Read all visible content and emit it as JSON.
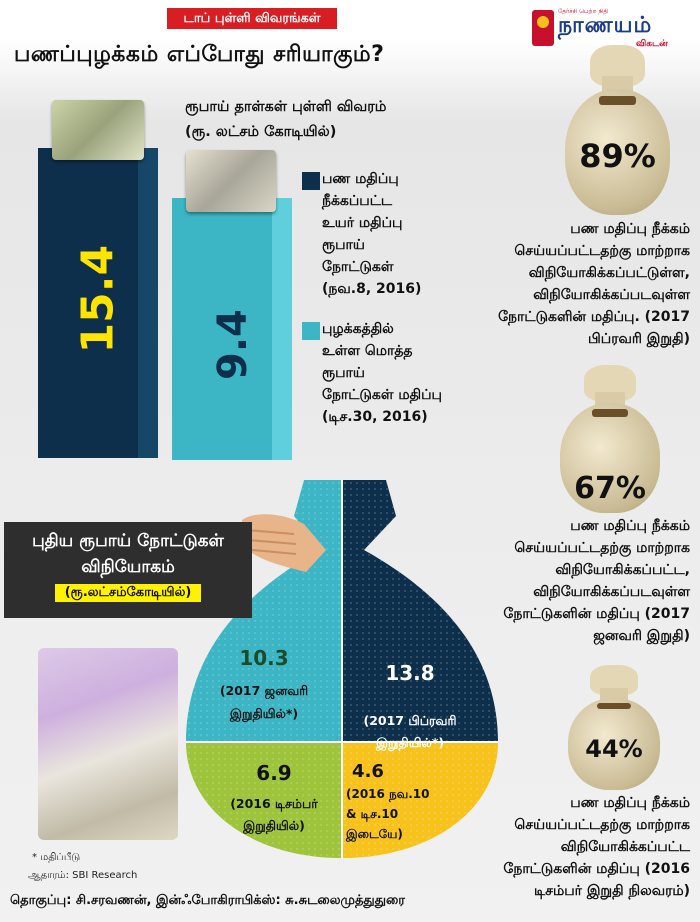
{
  "header": {
    "tag": "டாப் புள்ளி விவரங்கள்",
    "title": "பணப்புழக்கம் எப்போது சரியாகும்?"
  },
  "logo": {
    "small_text": "தேர்ச்சி பெற்ற நிதி",
    "main_text": "நாணயம்",
    "sub_text": "விகடன்"
  },
  "bar_section": {
    "subtitle_line1": "ரூபாய் தாள்கள் புள்ளி விவரம்",
    "subtitle_line2": "(ரூ. லட்சம் கோடியில்)"
  },
  "colors": {
    "dark_navy": "#0d2f4c",
    "teal": "#3cb6c4",
    "green": "#9dc43a",
    "yellow": "#f7c21b",
    "red_tag": "#d81d23",
    "banner_bg": "#2e2e2e"
  },
  "chart_data": [
    {
      "type": "bar",
      "categories": [
        "பண மதிப்பு நீக்கப்பட்ட உயர் மதிப்பு ரூபாய் நோட்டுகள் (நவ.8, 2016)",
        "புழக்கத்தில் உள்ள மொத்த ரூபாய் நோட்டுகள் மதிப்பு (டிச.30, 2016)"
      ],
      "values": [
        15.4,
        9.4
      ],
      "value_labels": [
        "15.4",
        "9.4"
      ],
      "title": "ரூபாய் தாள்கள் புள்ளி விவரம் (ரூ. லட்சம் கோடியில்)",
      "legend": [
        {
          "label": "பண மதிப்பு நீக்கப்பட்ட உயர் மதிப்பு ரூபாய் நோட்டுகள் (நவ.8, 2016)",
          "color": "#0d2f4c"
        },
        {
          "label": "புழக்கத்தில் உள்ள மொத்த ரூபாய் நோட்டுகள் மதிப்பு (டிச.30, 2016)",
          "color": "#3cb6c4"
        }
      ]
    },
    {
      "type": "pie",
      "title": "புதிய ரூபாய் நோட்டுகள் விநியோகம் (ரூ.லட்சம்கோடியில்)",
      "slices": [
        {
          "value": 10.3,
          "label": "10.3",
          "caption": "(2017 ஜனவரி இறுதியில்*)",
          "color": "#3cb6c4"
        },
        {
          "value": 13.8,
          "label": "13.8",
          "caption": "(2017 பிப்ரவரி இறுதியில்*)",
          "color": "#0d2f4c"
        },
        {
          "value": 4.6,
          "label": "4.6",
          "caption": "(2016 நவ.10 & டிச.10 இடையே)",
          "color": "#f7c21b"
        },
        {
          "value": 6.9,
          "label": "6.9",
          "caption": "(2016 டிசம்பர் இறுதியில்)",
          "color": "#9dc43a"
        }
      ]
    }
  ],
  "legend": {
    "item1": [
      "பண மதிப்பு",
      "நீக்கப்பட்ட",
      "உயர் மதிப்பு",
      "ரூபாய்",
      "நோட்டுகள்",
      "(நவ.8, 2016)"
    ],
    "item2": [
      "புழக்கத்தில்",
      "உள்ள மொத்த",
      "ரூபாய்",
      "நோட்டுகள் மதிப்பு",
      "(டிச.30, 2016)"
    ]
  },
  "stats": [
    {
      "percent": "89%",
      "lines": [
        "பண மதிப்பு நீக்கம்",
        "செய்யப்பட்டதற்கு மாற்றாக",
        "விநியோகிக்கப்பட்டுள்ள,",
        "விநியோகிக்கப்படவுள்ள",
        "நோட்டுகளின் மதிப்பு. (2017",
        "பிப்ரவரி இறுதி)"
      ]
    },
    {
      "percent": "67%",
      "lines": [
        "பண மதிப்பு நீக்கம்",
        "செய்யப்பட்டதற்கு மாற்றாக",
        "விநியோகிக்கப்பட்ட,",
        "விநியோகிக்கப்படவுள்ள",
        "நோட்டுகளின் மதிப்பு (2017",
        "ஜனவரி இறுதி)"
      ]
    },
    {
      "percent": "44%",
      "lines": [
        "பண மதிப்பு நீக்கம்",
        "செய்யப்பட்டதற்கு மாற்றாக",
        "விநியோகிக்கப்பட்ட",
        "நோட்டுகளின் மதிப்பு (2016",
        "டிசம்பர் இறுதி நிலவரம்)"
      ]
    }
  ],
  "banner": {
    "line1": "புதிய ரூபாய் நோட்டுகள்",
    "line2": "விநியோகம்",
    "line3": "(ரூ.லட்சம்கோடியில்)"
  },
  "footer": {
    "footnote": "* மதிப்பீடு",
    "source": "ஆதாரம்: SBI Research",
    "credit": "தொகுப்பு: சி.சரவணன், இன்ஃபோகிராபிக்ஸ்: சு.சுடலைமுத்துதுரை"
  }
}
